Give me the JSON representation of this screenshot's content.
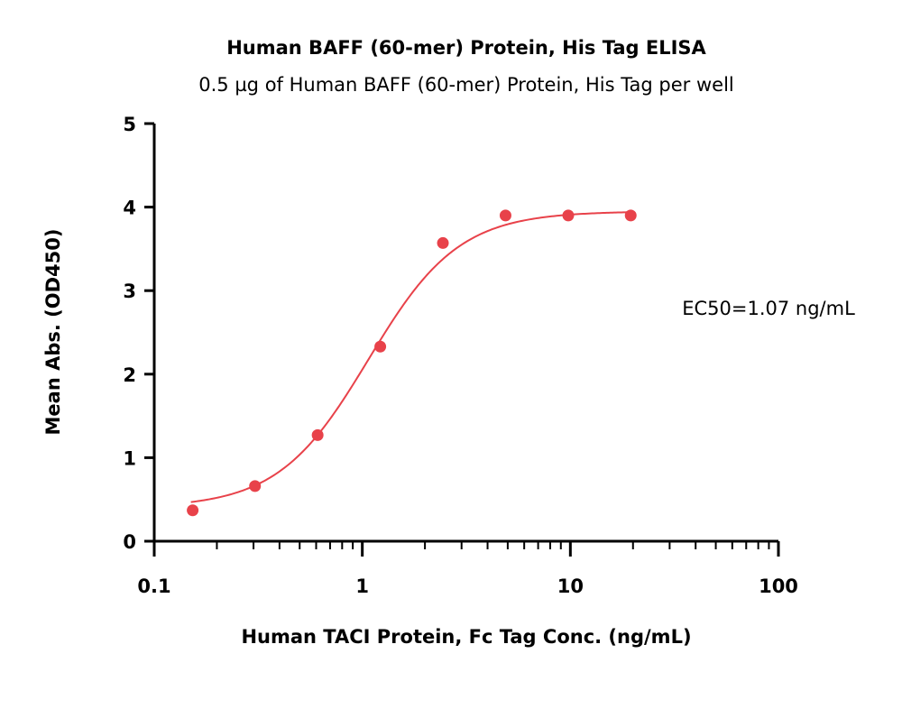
{
  "chart_data": {
    "type": "scatter",
    "title": "Human BAFF (60-mer) Protein, His Tag ELISA",
    "subtitle": "0.5 µg of Human BAFF (60-mer) Protein, His Tag per well",
    "xlabel": "Human TACI Protein, Fc Tag Conc. (ng/mL)",
    "ylabel": "Mean Abs. (OD450)",
    "x_scale": "log",
    "xlim": [
      0.1,
      100
    ],
    "ylim": [
      0,
      5
    ],
    "x_ticks": [
      0.1,
      1,
      10,
      100
    ],
    "x_tick_labels": [
      "0.1",
      "1",
      "10",
      "100"
    ],
    "y_ticks": [
      0,
      1,
      2,
      3,
      4,
      5
    ],
    "y_tick_labels": [
      "0",
      "1",
      "2",
      "3",
      "4",
      "5"
    ],
    "grid": false,
    "color": "#e8424a",
    "series": [
      {
        "x": [
          0.153,
          0.305,
          0.61,
          1.22,
          2.44,
          4.88,
          9.77,
          19.5
        ],
        "y": [
          0.37,
          0.66,
          1.27,
          2.33,
          3.57,
          3.9,
          3.9,
          3.9
        ]
      }
    ],
    "fit": {
      "model": "4PL",
      "bottom": 0.4,
      "top": 3.95,
      "ec50": 1.07,
      "hill": 2.0,
      "x_range": [
        0.15,
        19.5
      ]
    },
    "annotation": "EC50=1.07 ng/mL"
  }
}
